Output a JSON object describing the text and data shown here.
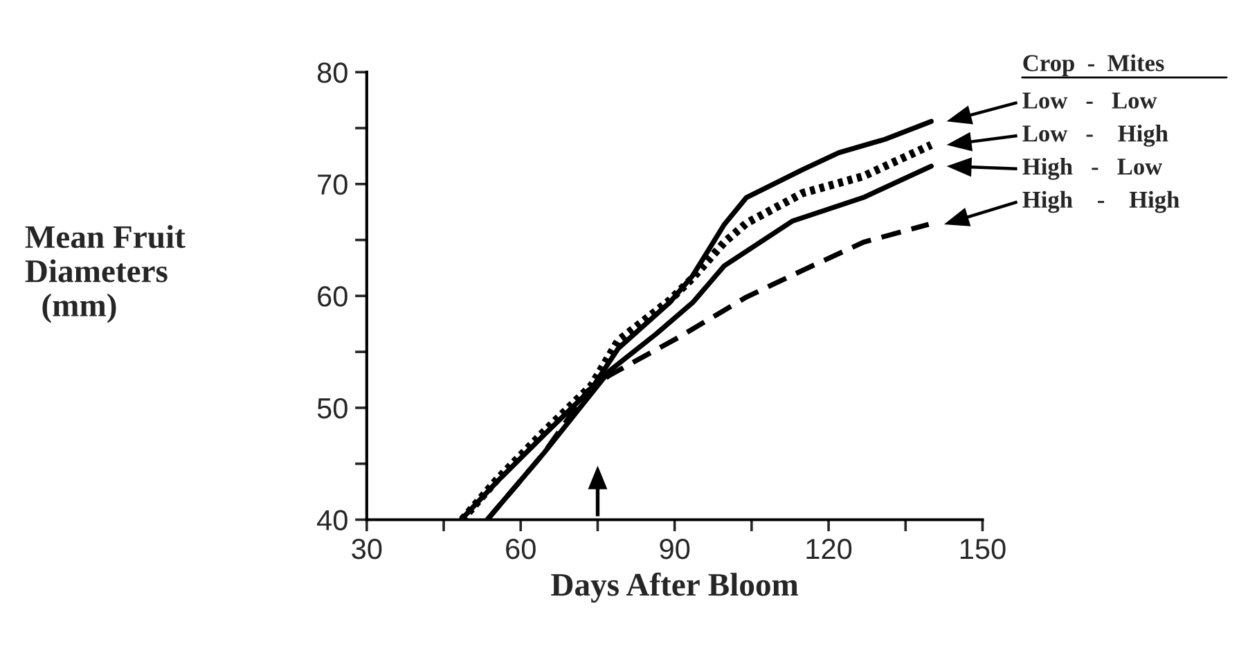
{
  "chart_data": {
    "type": "line",
    "xlabel": "Days After Bloom",
    "ylabel": "Mean Fruit\nDiameters\n  (mm)",
    "legend_title": "Crop  -  Mites",
    "legend": "right",
    "grid": false,
    "marker": "none",
    "xlim": [
      30,
      150
    ],
    "xticks": [
      30,
      {
        "value": 45,
        "label": null
      },
      60,
      {
        "value": 75,
        "label": null
      },
      90,
      {
        "value": 105,
        "label": null
      },
      120,
      {
        "value": 135,
        "label": null
      },
      150
    ],
    "ylim": [
      40,
      80
    ],
    "yticks": [
      40,
      {
        "value": 45,
        "label": null
      },
      50,
      {
        "value": 55,
        "label": null
      },
      60,
      {
        "value": 65,
        "label": null
      },
      70,
      {
        "value": 75,
        "label": null
      },
      80
    ],
    "series": [
      {
        "name": "Low   -   Low",
        "color": "#000000",
        "line_style": "solid",
        "x": [
          48.4,
          55.4,
          64.6,
          73.8,
          79,
          89,
          93.5,
          99.7,
          104,
          115,
          122,
          131,
          140
        ],
        "values": [
          40,
          43.4,
          47.6,
          51.7,
          55.3,
          59.4,
          61.8,
          66.4,
          68.8,
          71.3,
          72.8,
          74,
          75.6
        ]
      },
      {
        "name": "Low   -    High",
        "color": "#000000",
        "line_style": "dotted",
        "x": [
          48.6,
          55.4,
          64.6,
          73.8,
          79,
          89,
          93.5,
          99.7,
          104,
          115,
          126.8,
          140
        ],
        "values": [
          40,
          43.6,
          47.9,
          52,
          56,
          59.6,
          61.6,
          64.8,
          66.5,
          69.2,
          70.7,
          73.5
        ]
      },
      {
        "name": "High   -   Low",
        "color": "#000000",
        "line_style": "solid",
        "x": [
          53.5,
          64.6,
          77.3,
          86.4,
          93.5,
          99.7,
          113,
          126.8,
          140
        ],
        "values": [
          40,
          46,
          53.3,
          56.6,
          59.4,
          62.7,
          66.7,
          68.8,
          71.6
        ]
      },
      {
        "name": "High    -    High",
        "color": "#000000",
        "line_style": "dashed",
        "x": [
          53.5,
          64.6,
          73,
          77.3,
          90.8,
          104,
          115,
          126.8,
          139.5
        ],
        "values": [
          40,
          46,
          51.5,
          52.9,
          56.3,
          59.9,
          62.3,
          64.8,
          66.4
        ]
      }
    ]
  }
}
